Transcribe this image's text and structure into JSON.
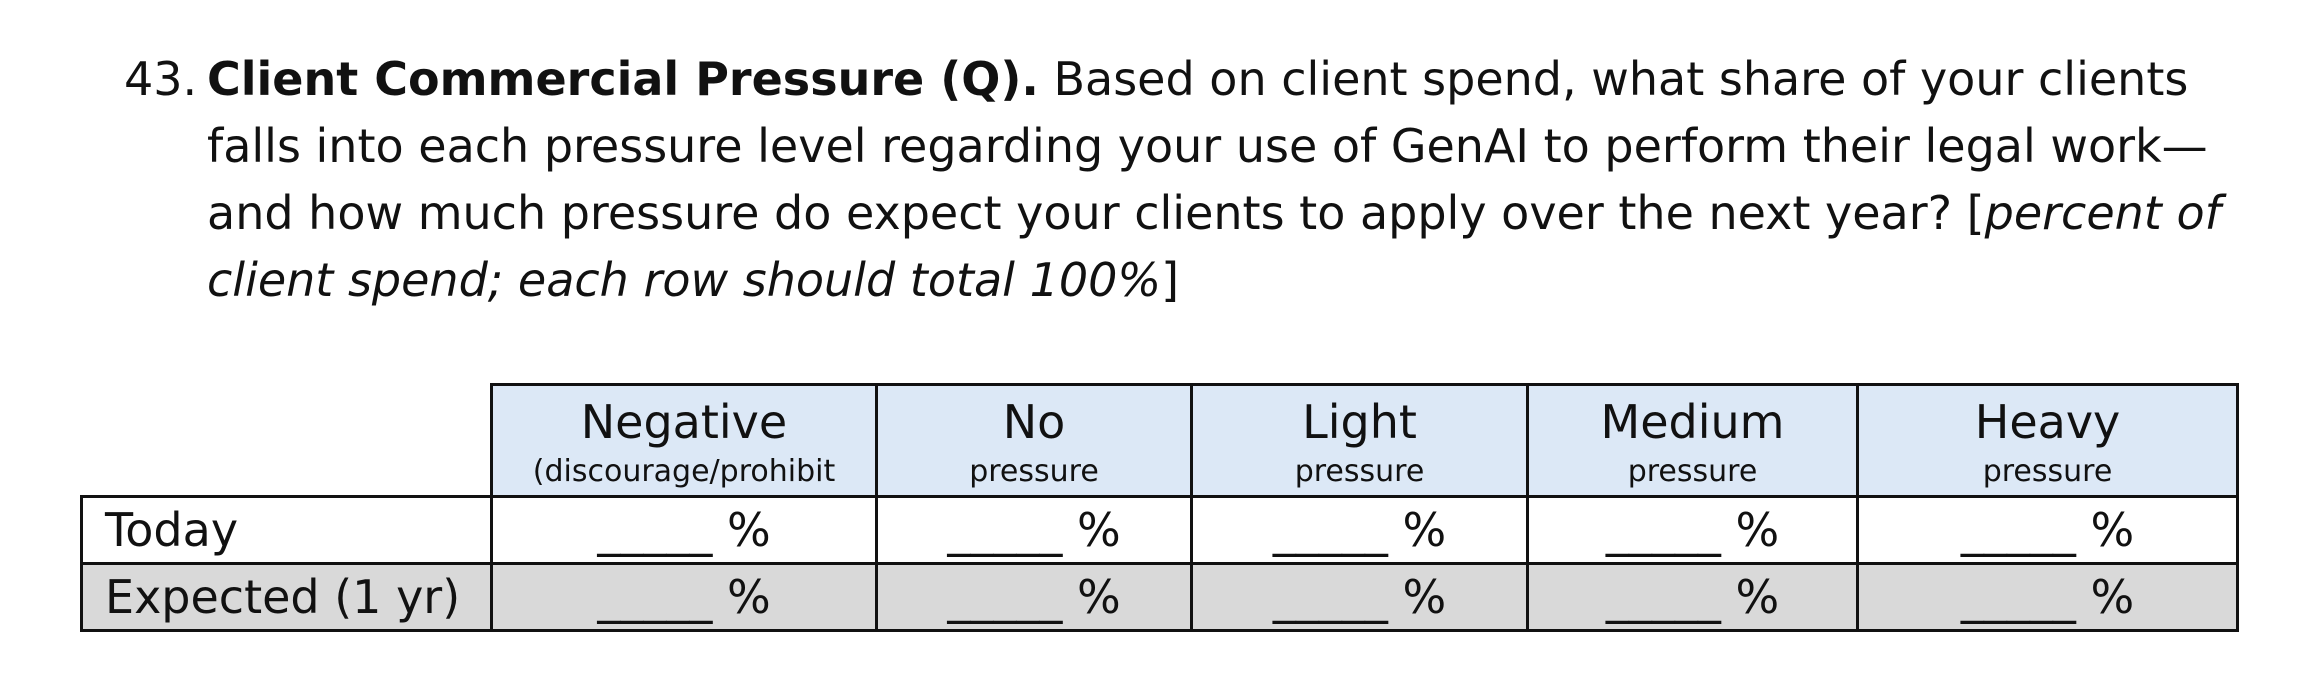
{
  "question": {
    "number": "43.",
    "title": "Client Commercial Pressure (Q).",
    "body": " Based on client spend, what share of your clients falls into each pressure level regarding your use of GenAI to perform their legal work—and how much pressure do expect your clients to apply over the next year?",
    "instruction_open": " [",
    "instruction": "percent of client spend; each row should total 100%",
    "instruction_close": "]"
  },
  "table": {
    "columns": [
      {
        "label": "Negative",
        "sublabel": "(discourage/prohibit"
      },
      {
        "label": "No",
        "sublabel": "pressure"
      },
      {
        "label": "Light",
        "sublabel": "pressure"
      },
      {
        "label": "Medium",
        "sublabel": "pressure"
      },
      {
        "label": "Heavy",
        "sublabel": "pressure"
      }
    ],
    "rows": [
      {
        "label": "Today",
        "cells": [
          "_____ %",
          "_____ %",
          "_____ %",
          "_____ %",
          "_____ %"
        ]
      },
      {
        "label": "Expected (1 yr)",
        "cells": [
          "_____ %",
          "_____ %",
          "_____ %",
          "_____ %",
          "_____ %"
        ]
      }
    ]
  },
  "colors": {
    "header_fill": "#dce8f6",
    "expected_row_fill": "#d9d9d9",
    "border": "#111111"
  }
}
